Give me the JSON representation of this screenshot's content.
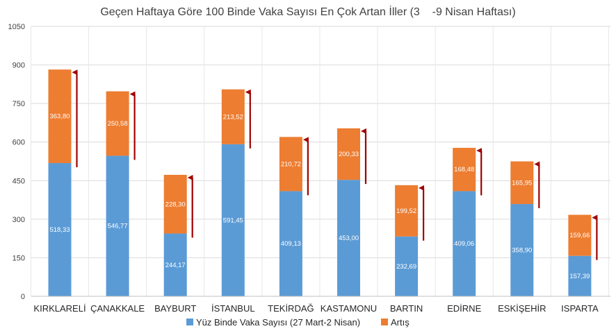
{
  "chart_data": {
    "type": "bar",
    "stacked": true,
    "title": "Geçen Haftaya Göre 100 Binde Vaka Sayısı En Çok Artan İller (3    -9 Nisan Haftası)",
    "categories": [
      "KIRKLARELİ",
      "ÇANAKKALE",
      "BAYBURT",
      "İSTANBUL",
      "TEKİRDAĞ",
      "KASTAMONU",
      "BARTIN",
      "EDİRNE",
      "ESKİŞEHİR",
      "ISPARTA"
    ],
    "series": [
      {
        "name": "Yüz Binde Vaka Sayısı (27 Mart-2 Nisan)",
        "color": "#5b9bd5",
        "values": [
          518.33,
          546.77,
          244.17,
          591.45,
          409.13,
          453.0,
          232.69,
          409.06,
          358.9,
          157.39
        ],
        "labels": [
          "518,33",
          "546,77",
          "244,17",
          "591,45",
          "409,13",
          "453,00",
          "232,69",
          "409,06",
          "358,90",
          "157,39"
        ]
      },
      {
        "name": "Artış",
        "color": "#ed7d31",
        "values": [
          363.8,
          250.58,
          228.3,
          213.52,
          210.72,
          200.33,
          199.52,
          168.48,
          165.95,
          159.66
        ],
        "labels": [
          "363,80",
          "250,58",
          "228,30",
          "213,52",
          "210,72",
          "200,33",
          "199,52",
          "168,48",
          "165,95",
          "159,66"
        ]
      }
    ],
    "ylim": [
      0,
      1050
    ],
    "yticks": [
      0,
      150,
      300,
      450,
      600,
      750,
      900,
      1050
    ],
    "grid": true,
    "legend": "bottom",
    "arrow_color": "#a00000"
  }
}
